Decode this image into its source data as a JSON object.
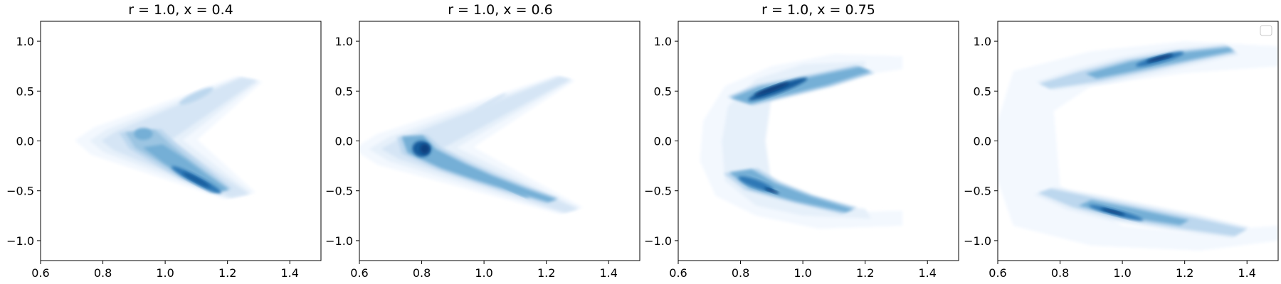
{
  "chart_data": [
    {
      "type": "kde-contour",
      "title": "r = 1.0, x = 0.4",
      "xlim": [
        0.6,
        1.5
      ],
      "ylim": [
        -1.2,
        1.2
      ],
      "xticks": [
        "0.6",
        "0.8",
        "1.0",
        "1.2",
        "1.4"
      ],
      "yticks": [
        "1.0",
        "0.5",
        "0.0",
        "−0.5",
        "−1.0"
      ],
      "legend": false,
      "density": {
        "upper_arm": {
          "start": [
            0.9,
            0.05
          ],
          "end": [
            1.25,
            0.6
          ]
        },
        "lower_arm": {
          "start": [
            0.95,
            -0.15
          ],
          "end": [
            1.2,
            -0.5
          ]
        },
        "peaks": [
          {
            "x": 0.93,
            "y": 0.05,
            "weight": 0.55
          },
          {
            "x": 1.1,
            "y": -0.4,
            "weight": 1.0
          },
          {
            "x": 1.05,
            "y": 0.45,
            "weight": 0.35
          }
        ]
      }
    },
    {
      "type": "kde-contour",
      "title": "r = 1.0, x = 0.6",
      "xlim": [
        0.6,
        1.5
      ],
      "ylim": [
        -1.2,
        1.2
      ],
      "xticks": [
        "0.6",
        "0.8",
        "1.0",
        "1.2",
        "1.4"
      ],
      "yticks": [
        "1.0",
        "0.5",
        "0.0",
        "−0.5",
        "−1.0"
      ],
      "legend": false,
      "density": {
        "peaks": [
          {
            "x": 0.8,
            "y": -0.1,
            "weight": 1.0
          },
          {
            "x": 1.1,
            "y": -0.5,
            "weight": 0.6
          },
          {
            "x": 1.05,
            "y": 0.45,
            "weight": 0.3
          }
        ]
      }
    },
    {
      "type": "kde-contour",
      "title": "r = 1.0, x = 0.75",
      "xlim": [
        0.6,
        1.5
      ],
      "ylim": [
        -1.2,
        1.2
      ],
      "xticks": [
        "0.6",
        "0.8",
        "1.0",
        "1.2",
        "1.4"
      ],
      "yticks": [
        "1.0",
        "0.5",
        "0.0",
        "−0.5",
        "−1.0"
      ],
      "legend": false,
      "density": {
        "peaks": [
          {
            "x": 0.9,
            "y": 0.5,
            "weight": 1.0
          },
          {
            "x": 0.85,
            "y": -0.45,
            "weight": 0.85
          },
          {
            "x": 1.15,
            "y": 0.7,
            "weight": 0.5
          }
        ]
      }
    },
    {
      "type": "kde-contour",
      "title": "",
      "xlim": [
        0.6,
        1.5
      ],
      "ylim": [
        -1.2,
        1.2
      ],
      "xticks": [
        "0.6",
        "0.8",
        "1.0",
        "1.2",
        "1.4"
      ],
      "yticks": [
        "1.0",
        "0.5",
        "0.0",
        "−0.5",
        "−1.0"
      ],
      "legend": true,
      "density": {
        "peaks": [
          {
            "x": 1.12,
            "y": 0.82,
            "weight": 1.0
          },
          {
            "x": 1.0,
            "y": -0.72,
            "weight": 1.0
          }
        ]
      }
    }
  ],
  "colors": {
    "levels": [
      "#f3f8fe",
      "#e6f0fa",
      "#d5e5f5",
      "#bcd7ee",
      "#9cc5e2",
      "#75afd6",
      "#4f95c8",
      "#2f78b6",
      "#165b9c",
      "#08407f"
    ]
  }
}
